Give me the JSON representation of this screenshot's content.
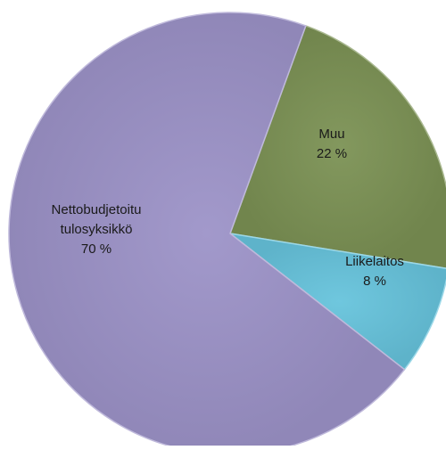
{
  "chart_data": {
    "type": "pie",
    "title": "",
    "slices": [
      {
        "label_lines": [
          "Muu"
        ],
        "value_label": "22 %",
        "value": 22,
        "color": "#7b9154"
      },
      {
        "label_lines": [
          "Liikelaitos"
        ],
        "value_label": "8 %",
        "value": 8,
        "color": "#66c3dc"
      },
      {
        "label_lines": [
          "Nettobudjetoitu",
          "tulosyksikkö"
        ],
        "value_label": "70 %",
        "value": 70,
        "color": "#9c93c8"
      }
    ],
    "start_angle_deg": 20,
    "legend": "none",
    "data_labels": "inside"
  }
}
